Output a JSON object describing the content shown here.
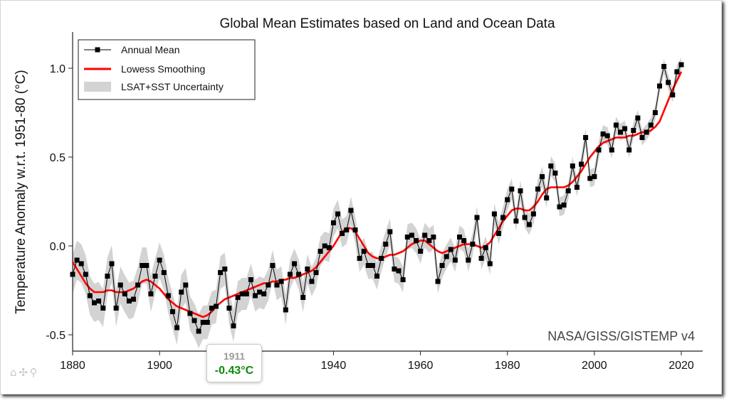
{
  "chart_data": {
    "type": "line",
    "title": "Global Mean Estimates based on Land and Ocean Data",
    "ylabel": "Temperature Anomaly w.r.t. 1951-80 (°C)",
    "xlabel": "",
    "xlim": [
      1880,
      2027
    ],
    "ylim": [
      -0.6,
      1.2
    ],
    "xticks": [
      "1880",
      "1900",
      "1920",
      "1940",
      "1960",
      "1980",
      "2000",
      "2020"
    ],
    "yticks": [
      "-0.5",
      "0.0",
      "0.5",
      "1.0"
    ],
    "legend_position": "top-left",
    "legend": [
      "Annual Mean",
      "Lowess Smoothing",
      "LSAT+SST Uncertainty"
    ],
    "watermark": "NASA/GISS/GISTEMP v4",
    "years_start": 1880,
    "series": [
      {
        "name": "Annual Mean",
        "color": "#000000",
        "marker": "square",
        "values": [
          -0.16,
          -0.08,
          -0.1,
          -0.16,
          -0.28,
          -0.32,
          -0.31,
          -0.35,
          -0.17,
          -0.1,
          -0.35,
          -0.22,
          -0.27,
          -0.31,
          -0.3,
          -0.22,
          -0.11,
          -0.11,
          -0.27,
          -0.17,
          -0.08,
          -0.15,
          -0.28,
          -0.37,
          -0.46,
          -0.26,
          -0.22,
          -0.38,
          -0.42,
          -0.48,
          -0.43,
          -0.43,
          -0.35,
          -0.34,
          -0.15,
          -0.13,
          -0.35,
          -0.45,
          -0.29,
          -0.27,
          -0.27,
          -0.19,
          -0.28,
          -0.26,
          -0.27,
          -0.22,
          -0.11,
          -0.22,
          -0.2,
          -0.36,
          -0.16,
          -0.1,
          -0.16,
          -0.29,
          -0.13,
          -0.2,
          -0.15,
          -0.03,
          -0.0,
          -0.01,
          0.13,
          0.18,
          0.07,
          0.09,
          0.2,
          0.09,
          -0.07,
          -0.03,
          -0.11,
          -0.11,
          -0.17,
          -0.07,
          0.01,
          0.08,
          -0.13,
          -0.14,
          -0.19,
          0.05,
          0.06,
          0.03,
          -0.03,
          0.06,
          0.03,
          0.05,
          -0.2,
          -0.11,
          -0.06,
          -0.02,
          -0.08,
          0.05,
          0.03,
          -0.08,
          0.01,
          0.16,
          -0.07,
          -0.01,
          -0.1,
          0.18,
          0.07,
          0.16,
          0.26,
          0.32,
          0.14,
          0.31,
          0.16,
          0.12,
          0.18,
          0.32,
          0.39,
          0.27,
          0.45,
          0.41,
          0.22,
          0.23,
          0.31,
          0.45,
          0.33,
          0.46,
          0.61,
          0.38,
          0.39,
          0.54,
          0.63,
          0.62,
          0.54,
          0.68,
          0.64,
          0.66,
          0.54,
          0.65,
          0.72,
          0.61,
          0.64,
          0.68,
          0.75,
          0.9,
          1.01,
          0.92,
          0.85,
          0.98,
          1.02
        ]
      },
      {
        "name": "Lowess Smoothing",
        "color": "#ff0000",
        "values": [
          -0.09,
          -0.13,
          -0.17,
          -0.21,
          -0.24,
          -0.26,
          -0.26,
          -0.26,
          -0.25,
          -0.25,
          -0.26,
          -0.26,
          -0.26,
          -0.25,
          -0.24,
          -0.22,
          -0.2,
          -0.19,
          -0.2,
          -0.22,
          -0.24,
          -0.27,
          -0.3,
          -0.32,
          -0.34,
          -0.35,
          -0.36,
          -0.37,
          -0.38,
          -0.39,
          -0.4,
          -0.39,
          -0.37,
          -0.34,
          -0.32,
          -0.3,
          -0.29,
          -0.28,
          -0.27,
          -0.26,
          -0.25,
          -0.24,
          -0.23,
          -0.22,
          -0.21,
          -0.21,
          -0.2,
          -0.2,
          -0.19,
          -0.19,
          -0.18,
          -0.18,
          -0.17,
          -0.16,
          -0.15,
          -0.14,
          -0.12,
          -0.09,
          -0.06,
          -0.03,
          0.0,
          0.04,
          0.08,
          0.1,
          0.1,
          0.08,
          0.04,
          -0.0,
          -0.04,
          -0.06,
          -0.07,
          -0.07,
          -0.06,
          -0.05,
          -0.05,
          -0.04,
          -0.03,
          -0.01,
          0.01,
          0.02,
          0.03,
          0.03,
          0.01,
          -0.01,
          -0.03,
          -0.04,
          -0.03,
          -0.02,
          -0.01,
          0.0,
          0.01,
          0.01,
          0.01,
          -0.0,
          -0.01,
          -0.0,
          0.02,
          0.06,
          0.1,
          0.14,
          0.17,
          0.2,
          0.21,
          0.21,
          0.2,
          0.2,
          0.22,
          0.25,
          0.29,
          0.32,
          0.33,
          0.33,
          0.33,
          0.33,
          0.34,
          0.36,
          0.39,
          0.42,
          0.46,
          0.5,
          0.53,
          0.56,
          0.58,
          0.59,
          0.6,
          0.61,
          0.61,
          0.61,
          0.62,
          0.62,
          0.63,
          0.64,
          0.64,
          0.65,
          0.67,
          0.7,
          0.76,
          0.82,
          0.88,
          0.93,
          0.98
        ]
      },
      {
        "name": "LSAT+SST Uncertainty",
        "color": "#d3d3d3",
        "half_width_start": 0.11,
        "half_width_end": 0.04
      }
    ]
  },
  "tooltip": {
    "year": "1911",
    "value": "-0.43°C",
    "value_color": "#0a8a0a"
  },
  "toolbar": {
    "home_icon": "⌂",
    "pan_icon": "✣",
    "zoom_icon": "⚲"
  }
}
